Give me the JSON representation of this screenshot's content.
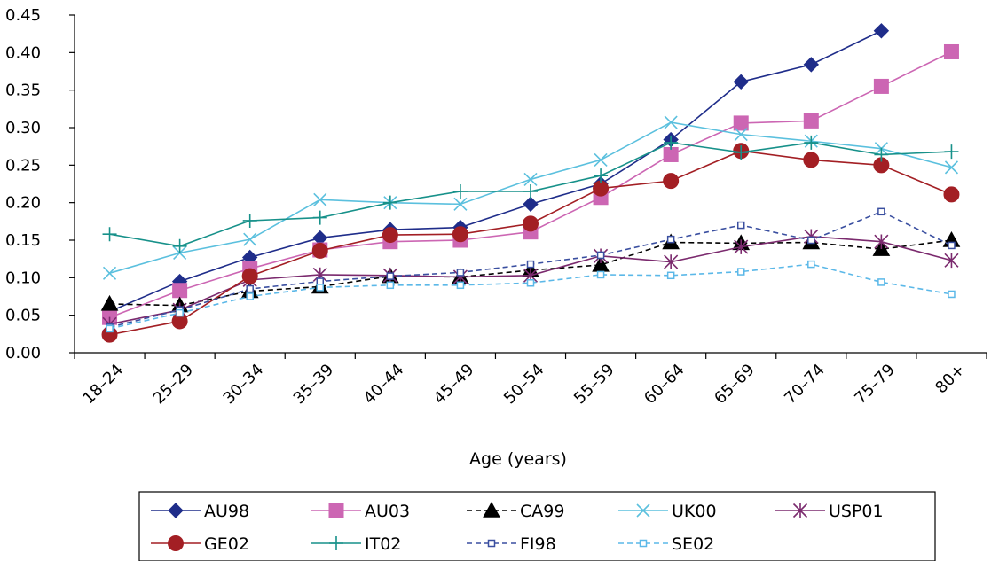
{
  "chart_data": {
    "type": "line",
    "title": "",
    "xlabel": "Age (years)",
    "ylabel": "",
    "ylim": [
      0,
      0.45
    ],
    "yticks": [
      "0.00",
      "0.05",
      "0.10",
      "0.15",
      "0.20",
      "0.25",
      "0.30",
      "0.35",
      "0.40",
      "0.45"
    ],
    "categories": [
      "18–24",
      "25–29",
      "30–34",
      "35–39",
      "40–44",
      "45–49",
      "50–54",
      "55–59",
      "60–64",
      "65–69",
      "70–74",
      "75–79",
      "80+"
    ],
    "grid": false,
    "legend_position": "bottom",
    "series": [
      {
        "name": "AU98",
        "color": "#1f2d8a",
        "marker": "diamond",
        "dash": "solid",
        "values": [
          0.055,
          0.095,
          0.127,
          0.153,
          0.164,
          0.167,
          0.198,
          0.225,
          0.284,
          0.361,
          0.384,
          0.429,
          null
        ]
      },
      {
        "name": "AU03",
        "color": "#cc66b3",
        "marker": "square",
        "dash": "solid",
        "values": [
          0.047,
          0.083,
          0.112,
          0.137,
          0.148,
          0.15,
          0.161,
          0.207,
          0.264,
          0.306,
          0.309,
          0.355,
          0.401
        ]
      },
      {
        "name": "CA99",
        "color": "#000000",
        "marker": "triangle",
        "dash": "dashed",
        "values": [
          0.065,
          0.063,
          0.082,
          0.088,
          0.102,
          0.101,
          0.11,
          0.117,
          0.147,
          0.146,
          0.147,
          0.138,
          0.15
        ]
      },
      {
        "name": "UK00",
        "color": "#5bc0de",
        "marker": "x",
        "dash": "solid",
        "values": [
          0.106,
          0.133,
          0.151,
          0.204,
          0.2,
          0.198,
          0.231,
          0.257,
          0.307,
          0.291,
          0.282,
          0.272,
          0.247
        ]
      },
      {
        "name": "USP01",
        "color": "#7b2a6e",
        "marker": "asterisk",
        "dash": "solid",
        "values": [
          0.038,
          0.057,
          0.097,
          0.104,
          0.103,
          0.101,
          0.103,
          0.129,
          0.121,
          0.141,
          0.155,
          0.148,
          0.123
        ]
      },
      {
        "name": "GE02",
        "color": "#a31f24",
        "marker": "circle",
        "dash": "solid",
        "values": [
          0.024,
          0.042,
          0.102,
          0.136,
          0.157,
          0.158,
          0.172,
          0.219,
          0.229,
          0.269,
          0.257,
          0.25,
          0.211
        ]
      },
      {
        "name": "IT02",
        "color": "#17918a",
        "marker": "plus",
        "dash": "solid",
        "values": [
          0.158,
          0.142,
          0.176,
          0.18,
          0.2,
          0.215,
          0.215,
          0.236,
          0.28,
          0.267,
          0.28,
          0.264,
          0.268
        ]
      },
      {
        "name": "FI98",
        "color": "#3a4fa0",
        "marker": "smallsquare",
        "dash": "dashed",
        "values": [
          0.034,
          0.057,
          0.085,
          0.095,
          0.102,
          0.107,
          0.118,
          0.13,
          0.151,
          0.17,
          0.15,
          0.188,
          0.143
        ]
      },
      {
        "name": "SE02",
        "color": "#5bb8e8",
        "marker": "smallsquare",
        "dash": "dashed",
        "values": [
          0.032,
          0.053,
          0.075,
          0.087,
          0.09,
          0.09,
          0.093,
          0.104,
          0.103,
          0.108,
          0.118,
          0.094,
          0.078
        ]
      }
    ]
  }
}
